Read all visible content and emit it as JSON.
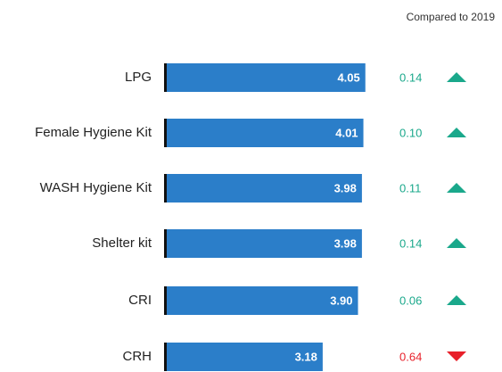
{
  "chart_data": {
    "type": "bar",
    "orientation": "horizontal",
    "categories": [
      "LPG",
      "Female Hygiene Kit",
      "WASH Hygiene Kit",
      "Shelter kit",
      "CRI",
      "CRH"
    ],
    "values": [
      4.05,
      4.01,
      3.98,
      3.98,
      3.9,
      3.18
    ],
    "value_labels": [
      "4.05",
      "4.01",
      "3.98",
      "3.98",
      "3.90",
      "3.18"
    ],
    "color": "#2b7ec9",
    "xlim": [
      0,
      5
    ],
    "comparison": {
      "title": "Compared to 2019",
      "values": [
        0.14,
        0.1,
        0.11,
        0.14,
        0.06,
        0.64
      ],
      "value_labels": [
        "0.14",
        "0.10",
        "0.11",
        "0.14",
        "0.06",
        "0.64"
      ],
      "directions": [
        "up",
        "up",
        "up",
        "up",
        "up",
        "down"
      ],
      "colors": {
        "up": "#1aa88b",
        "down": "#e8202a"
      }
    }
  }
}
